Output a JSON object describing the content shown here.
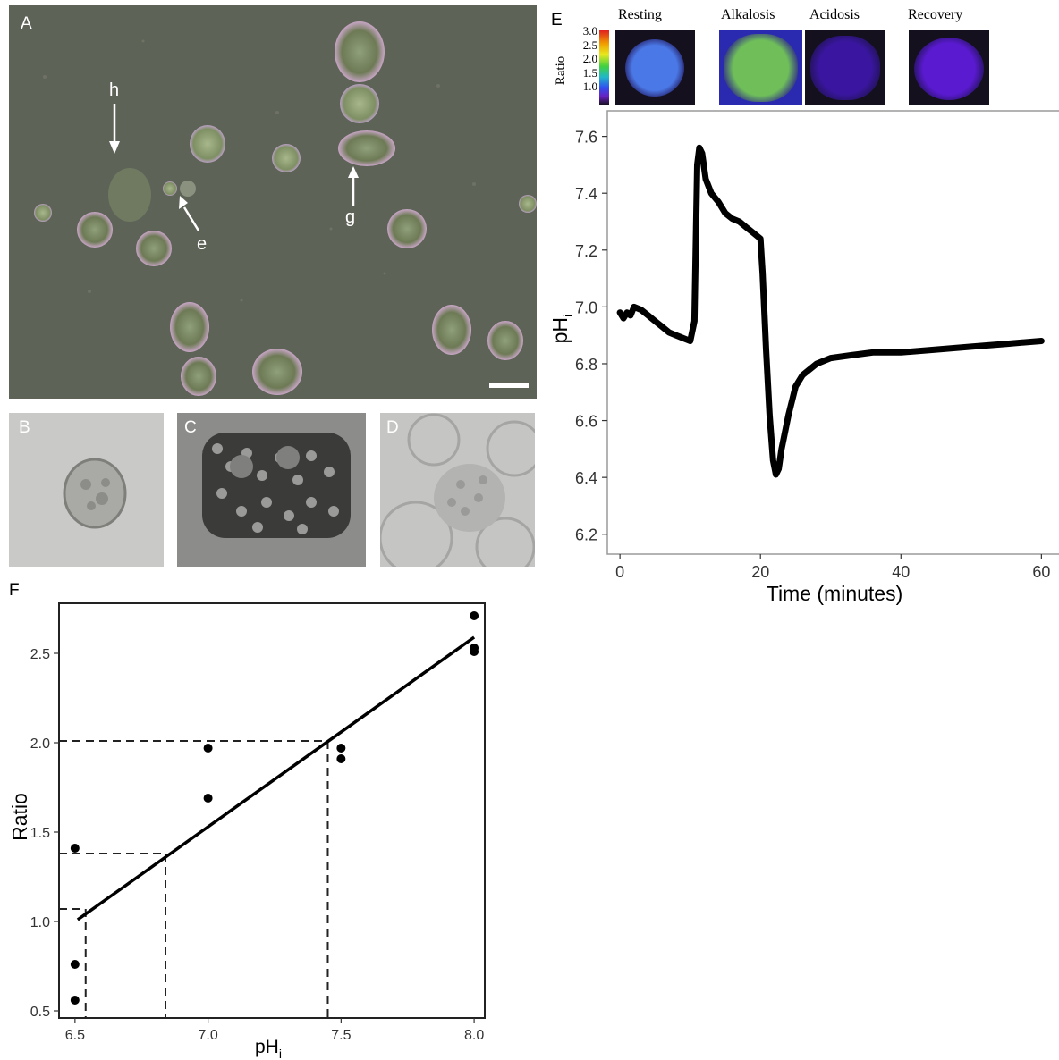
{
  "panels": {
    "a": {
      "label": "A",
      "annotations": [
        "h",
        "e",
        "g"
      ]
    },
    "b": {
      "label": "B"
    },
    "c": {
      "label": "C"
    },
    "d": {
      "label": "D"
    },
    "e": {
      "label": "E"
    },
    "f": {
      "label": "F"
    }
  },
  "colorbar": {
    "title": "Ratio",
    "ticks": [
      "3.0",
      "2.5",
      "2.0",
      "1.5",
      "1.0"
    ]
  },
  "thumbnails": [
    {
      "label": "Resting",
      "color": "#4a78e6"
    },
    {
      "label": "Alkalosis",
      "color": "#6fbe5a"
    },
    {
      "label": "Acidosis",
      "color": "#3a16a0"
    },
    {
      "label": "Recovery",
      "color": "#5a1ad0"
    }
  ],
  "chart_data": [
    {
      "type": "line",
      "panel": "E",
      "xlabel": "Time (minutes)",
      "ylabel": {
        "base": "pH",
        "sub": "i"
      },
      "xlim": [
        -1.8,
        62.5
      ],
      "ylim": [
        6.13,
        7.69
      ],
      "xticks": [
        0,
        20,
        40,
        60
      ],
      "yticks": [
        "7.6",
        "7.4",
        "7.2",
        "7.0",
        "6.8",
        "6.6",
        "6.4",
        "6.2"
      ],
      "grid": false,
      "series": [
        {
          "color": "#000000",
          "x": [
            0,
            0.5,
            1,
            1.5,
            2,
            3,
            4,
            5,
            6,
            7,
            8,
            9,
            10,
            10.6,
            11,
            11.3,
            11.7,
            12.2,
            13,
            14,
            15,
            16,
            17,
            18,
            19,
            20,
            20.3,
            20.8,
            21.3,
            21.8,
            22.2,
            22.6,
            23,
            24,
            25,
            26,
            28,
            30,
            33,
            36,
            40,
            45,
            50,
            55,
            60
          ],
          "y": [
            6.98,
            6.96,
            6.98,
            6.97,
            7.0,
            6.99,
            6.97,
            6.95,
            6.93,
            6.91,
            6.9,
            6.89,
            6.88,
            6.95,
            7.5,
            7.56,
            7.54,
            7.45,
            7.4,
            7.37,
            7.33,
            7.31,
            7.3,
            7.28,
            7.26,
            7.24,
            7.12,
            6.85,
            6.62,
            6.46,
            6.41,
            6.43,
            6.5,
            6.62,
            6.72,
            6.76,
            6.8,
            6.82,
            6.83,
            6.84,
            6.84,
            6.85,
            6.86,
            6.87,
            6.88
          ]
        }
      ]
    },
    {
      "type": "scatter",
      "panel": "F",
      "xlabel": {
        "base": "pH",
        "sub": "i"
      },
      "ylabel": "Ratio",
      "xlim": [
        6.44,
        8.04
      ],
      "ylim": [
        0.46,
        2.78
      ],
      "xticks": [
        "6.5",
        "7.0",
        "7.5",
        "8.0"
      ],
      "yticks": [
        "0.5",
        "1.0",
        "1.5",
        "2.0",
        "2.5"
      ],
      "grid": false,
      "points": {
        "x": [
          6.5,
          6.5,
          6.5,
          7.0,
          7.0,
          7.5,
          7.5,
          8.0,
          8.0,
          8.0
        ],
        "y": [
          0.56,
          0.76,
          1.41,
          1.69,
          1.97,
          1.91,
          1.97,
          2.71,
          2.53,
          2.51
        ]
      },
      "fit_line": {
        "x": [
          6.51,
          8.0
        ],
        "y": [
          1.01,
          2.59
        ]
      },
      "reference_lines": [
        {
          "ratio": 2.01,
          "ph": 7.45
        },
        {
          "ratio": 1.38,
          "ph": 6.84
        },
        {
          "ratio": 1.07,
          "ph": 6.54
        }
      ]
    }
  ]
}
